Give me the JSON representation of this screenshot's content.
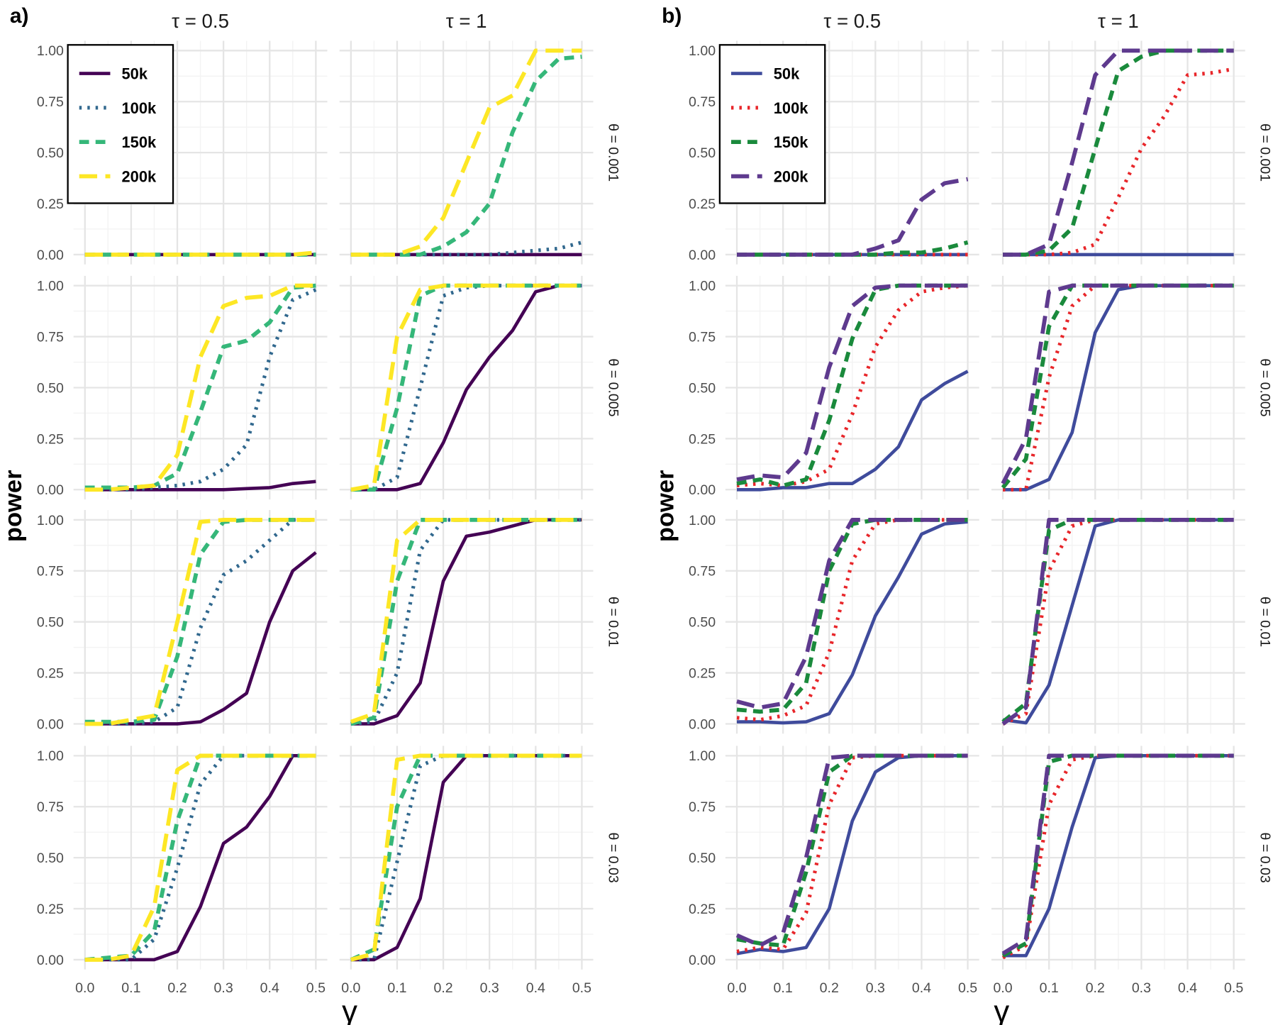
{
  "chart_data": {
    "type": "line",
    "x": [
      0,
      0.05,
      0.1,
      0.15,
      0.2,
      0.25,
      0.3,
      0.35,
      0.4,
      0.45,
      0.5
    ],
    "xlabel": "γ",
    "ylabel": "power",
    "xlim": [
      0,
      0.5
    ],
    "ylim": [
      0,
      1
    ],
    "xticks": [
      "0.0",
      "0.1",
      "0.2",
      "0.3",
      "0.4",
      "0.5"
    ],
    "yticks": [
      "0.00",
      "0.25",
      "0.50",
      "0.75",
      "1.00"
    ],
    "grid": true,
    "legend_placement": "top-left",
    "columns": [
      "τ = 0.5",
      "τ = 1"
    ],
    "rows": [
      "θ = 0.001",
      "θ = 0.005",
      "θ = 0.01",
      "θ = 0.03"
    ],
    "groups": [
      {
        "tag": "a)",
        "series_names": [
          "50k",
          "100k",
          "150k",
          "200k"
        ],
        "colors": [
          "#440154",
          "#31688e",
          "#35b779",
          "#fde725"
        ],
        "line_styles": [
          "solid",
          "dotted",
          "dashed",
          "longdash"
        ],
        "panels": [
          [
            [
              [
                0,
                0,
                0,
                0,
                0,
                0,
                0,
                0,
                0,
                0,
                0
              ],
              [
                0,
                0,
                0,
                0,
                0,
                0,
                0,
                0,
                0,
                0,
                0
              ],
              [
                0,
                0,
                0,
                0,
                0,
                0,
                0,
                0,
                0,
                0,
                0
              ],
              [
                0,
                0,
                0,
                0,
                0,
                0,
                0,
                0,
                0,
                0,
                0.01
              ]
            ],
            [
              [
                0,
                0,
                0,
                0,
                0,
                0,
                0,
                0,
                0,
                0,
                0
              ],
              [
                0,
                0,
                0,
                0,
                0,
                0,
                0,
                0.01,
                0.02,
                0.03,
                0.06
              ],
              [
                0,
                0,
                0,
                0,
                0.04,
                0.11,
                0.25,
                0.6,
                0.85,
                0.96,
                0.97
              ],
              [
                0,
                0,
                0,
                0.04,
                0.18,
                0.45,
                0.72,
                0.78,
                1,
                1,
                1
              ]
            ]
          ],
          [
            [
              [
                0,
                0,
                0,
                0,
                0,
                0,
                0,
                0.005,
                0.01,
                0.03,
                0.04
              ],
              [
                0,
                0,
                0,
                0.01,
                0.02,
                0.04,
                0.1,
                0.22,
                0.65,
                0.93,
                0.98
              ],
              [
                0.01,
                0.01,
                0.01,
                0.02,
                0.08,
                0.38,
                0.7,
                0.73,
                0.82,
                0.99,
                1
              ],
              [
                0,
                0,
                0.01,
                0.02,
                0.17,
                0.65,
                0.9,
                0.94,
                0.95,
                1,
                1
              ]
            ],
            [
              [
                0,
                0,
                0,
                0.03,
                0.23,
                0.49,
                0.65,
                0.78,
                0.97,
                1,
                1
              ],
              [
                0,
                0,
                0.06,
                0.5,
                0.95,
                0.99,
                1,
                1,
                1,
                1,
                1
              ],
              [
                0,
                0,
                0.4,
                0.95,
                1,
                1,
                1,
                1,
                1,
                1,
                1
              ],
              [
                0,
                0.02,
                0.75,
                0.98,
                1,
                1,
                1,
                1,
                1,
                1,
                1
              ]
            ]
          ],
          [
            [
              [
                0,
                0,
                0,
                0,
                0,
                0.01,
                0.07,
                0.15,
                0.5,
                0.75,
                0.84
              ],
              [
                0,
                0,
                0,
                0.01,
                0.08,
                0.47,
                0.73,
                0.8,
                0.9,
                1,
                1
              ],
              [
                0.01,
                0.01,
                0.01,
                0.02,
                0.33,
                0.83,
                0.99,
                1,
                1,
                1,
                1
              ],
              [
                0,
                0,
                0.02,
                0.04,
                0.5,
                0.99,
                1,
                1,
                1,
                1,
                1
              ]
            ],
            [
              [
                0,
                0,
                0.04,
                0.2,
                0.7,
                0.92,
                0.94,
                0.97,
                1,
                1,
                1
              ],
              [
                0,
                0.01,
                0.25,
                0.85,
                1,
                1,
                1,
                1,
                1,
                1,
                1
              ],
              [
                0,
                0.03,
                0.7,
                1,
                1,
                1,
                1,
                1,
                1,
                1,
                1
              ],
              [
                0.01,
                0.05,
                0.9,
                1,
                1,
                1,
                1,
                1,
                1,
                1,
                1
              ]
            ]
          ],
          [
            [
              [
                0,
                0,
                0,
                0,
                0.04,
                0.26,
                0.57,
                0.65,
                0.8,
                1,
                1
              ],
              [
                0,
                0,
                0,
                0.1,
                0.45,
                0.86,
                1,
                1,
                1,
                1,
                1
              ],
              [
                0,
                0.01,
                0.02,
                0.14,
                0.68,
                1,
                1,
                1,
                1,
                1,
                1
              ],
              [
                0,
                0,
                0.02,
                0.26,
                0.93,
                1,
                1,
                1,
                1,
                1,
                1
              ]
            ],
            [
              [
                0,
                0,
                0.06,
                0.3,
                0.87,
                1,
                1,
                1,
                1,
                1,
                1
              ],
              [
                0,
                0,
                0.48,
                0.95,
                1,
                1,
                1,
                1,
                1,
                1,
                1
              ],
              [
                0,
                0.05,
                0.75,
                1,
                1,
                1,
                1,
                1,
                1,
                1,
                1
              ],
              [
                0,
                0.03,
                0.98,
                1,
                1,
                1,
                1,
                1,
                1,
                1,
                1
              ]
            ]
          ]
        ]
      },
      {
        "tag": "b)",
        "series_names": [
          "50k",
          "100k",
          "150k",
          "200k"
        ],
        "colors": [
          "#3f4b9c",
          "#e8262a",
          "#1a8a3c",
          "#5e3a8e"
        ],
        "line_styles": [
          "solid",
          "dotted",
          "dashed",
          "longdash"
        ],
        "panels": [
          [
            [
              [
                0,
                0,
                0,
                0,
                0,
                0,
                0,
                0,
                0,
                0,
                0
              ],
              [
                0,
                0,
                0,
                0,
                0,
                0,
                0,
                0,
                0,
                0,
                0
              ],
              [
                0,
                0,
                0,
                0,
                0,
                0,
                0,
                0.01,
                0.01,
                0.03,
                0.06
              ],
              [
                0,
                0,
                0,
                0,
                0,
                0,
                0.03,
                0.07,
                0.27,
                0.35,
                0.37
              ]
            ],
            [
              [
                0,
                0,
                0,
                0,
                0,
                0,
                0,
                0,
                0,
                0,
                0
              ],
              [
                0,
                0,
                0,
                0.01,
                0.05,
                0.28,
                0.52,
                0.68,
                0.88,
                0.89,
                0.91
              ],
              [
                0,
                0,
                0.02,
                0.13,
                0.52,
                0.9,
                0.97,
                1,
                1,
                1,
                1
              ],
              [
                0,
                0,
                0.05,
                0.45,
                0.88,
                1,
                1,
                1,
                1,
                1,
                1
              ]
            ]
          ],
          [
            [
              [
                0,
                0,
                0.01,
                0.01,
                0.03,
                0.03,
                0.1,
                0.21,
                0.44,
                0.52,
                0.58
              ],
              [
                0.02,
                0.03,
                0.02,
                0.04,
                0.1,
                0.37,
                0.7,
                0.88,
                0.97,
                0.99,
                1
              ],
              [
                0.03,
                0.05,
                0.02,
                0.05,
                0.34,
                0.74,
                0.98,
                1,
                1,
                1,
                1
              ],
              [
                0.05,
                0.07,
                0.06,
                0.18,
                0.6,
                0.9,
                0.99,
                1,
                1,
                1,
                1
              ]
            ],
            [
              [
                0,
                0,
                0.05,
                0.28,
                0.77,
                0.98,
                1,
                1,
                1,
                1,
                1
              ],
              [
                0,
                0,
                0.55,
                0.9,
                1,
                1,
                1,
                1,
                1,
                1,
                1
              ],
              [
                0.01,
                0.15,
                0.8,
                1,
                1,
                1,
                1,
                1,
                1,
                1,
                1
              ],
              [
                0.03,
                0.25,
                0.97,
                1,
                1,
                1,
                1,
                1,
                1,
                1,
                1
              ]
            ]
          ],
          [
            [
              [
                0.01,
                0.01,
                0.005,
                0.01,
                0.05,
                0.24,
                0.53,
                0.72,
                0.93,
                0.98,
                0.99
              ],
              [
                0.03,
                0.02,
                0.04,
                0.09,
                0.35,
                0.8,
                0.98,
                1,
                1,
                1,
                1
              ],
              [
                0.07,
                0.06,
                0.07,
                0.2,
                0.75,
                0.98,
                1,
                1,
                1,
                1,
                1
              ],
              [
                0.11,
                0.08,
                0.1,
                0.33,
                0.8,
                1,
                1,
                1,
                1,
                1,
                1
              ]
            ],
            [
              [
                0.02,
                0.005,
                0.19,
                0.58,
                0.97,
                1,
                1,
                1,
                1,
                1,
                1
              ],
              [
                0,
                0.05,
                0.75,
                0.97,
                1,
                1,
                1,
                1,
                1,
                1,
                1
              ],
              [
                0.01,
                0.1,
                0.95,
                1,
                1,
                1,
                1,
                1,
                1,
                1,
                1
              ],
              [
                0,
                0.08,
                1,
                1,
                1,
                1,
                1,
                1,
                1,
                1,
                1
              ]
            ]
          ],
          [
            [
              [
                0.03,
                0.05,
                0.04,
                0.06,
                0.25,
                0.68,
                0.92,
                0.99,
                1,
                1,
                1
              ],
              [
                0.04,
                0.06,
                0.05,
                0.23,
                0.76,
                0.99,
                1,
                1,
                1,
                1,
                1
              ],
              [
                0.1,
                0.08,
                0.07,
                0.43,
                0.92,
                1,
                1,
                1,
                1,
                1,
                1
              ],
              [
                0.12,
                0.07,
                0.13,
                0.5,
                0.99,
                1,
                1,
                1,
                1,
                1,
                1
              ]
            ],
            [
              [
                0.02,
                0.02,
                0.25,
                0.65,
                0.99,
                1,
                1,
                1,
                1,
                1,
                1
              ],
              [
                0.01,
                0.07,
                0.76,
                0.98,
                1,
                1,
                1,
                1,
                1,
                1,
                1
              ],
              [
                0.02,
                0.08,
                0.97,
                1,
                1,
                1,
                1,
                1,
                1,
                1,
                1
              ],
              [
                0.03,
                0.1,
                1,
                1,
                1,
                1,
                1,
                1,
                1,
                1,
                1
              ]
            ]
          ]
        ]
      }
    ]
  }
}
